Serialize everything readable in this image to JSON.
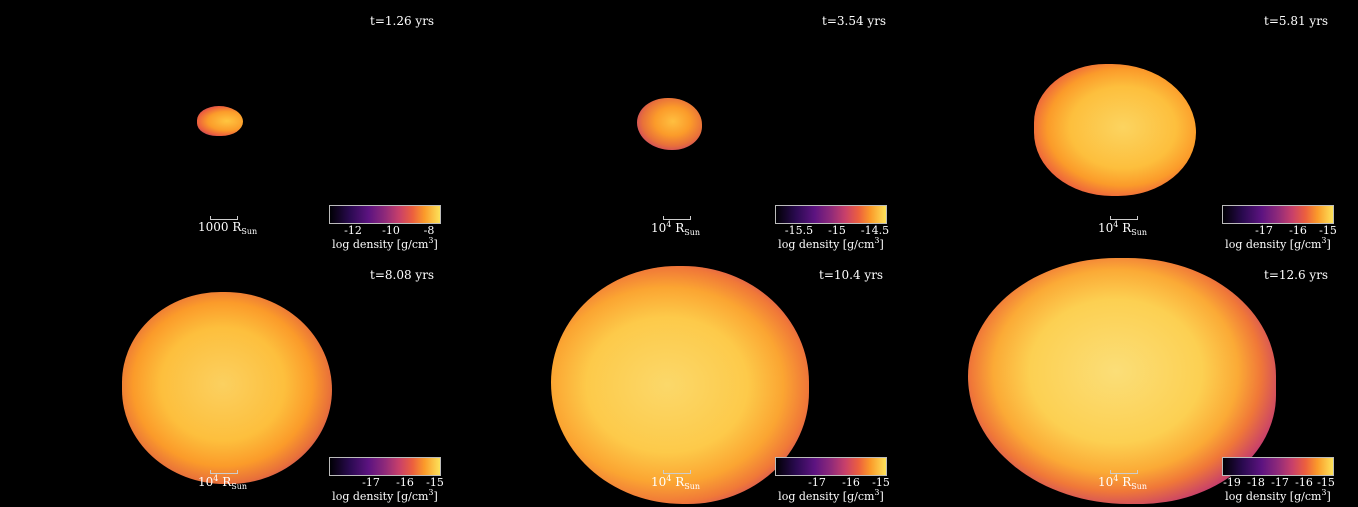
{
  "panels": [
    {
      "time": "t=1.26 yrs",
      "scale_num": "1000",
      "scale_sup": "",
      "scale_unit": "R",
      "scale_sub": "Sun",
      "cbar_ticks": [
        "-12",
        "-10",
        "-8"
      ],
      "cbar_label": "log density [g/cm",
      "cbar_label_sup": "3",
      "cbar_label_end": "]"
    },
    {
      "time": "t=3.54 yrs",
      "scale_num": "10",
      "scale_sup": "4",
      "scale_unit": "R",
      "scale_sub": "Sun",
      "cbar_ticks": [
        "-15.5",
        "-15",
        "-14.5"
      ],
      "cbar_label": "log density [g/cm",
      "cbar_label_sup": "3",
      "cbar_label_end": "]"
    },
    {
      "time": "t=5.81 yrs",
      "scale_num": "10",
      "scale_sup": "4",
      "scale_unit": "R",
      "scale_sub": "Sun",
      "cbar_ticks": [
        "-17",
        "-16",
        "-15"
      ],
      "cbar_label": "log density [g/cm",
      "cbar_label_sup": "3",
      "cbar_label_end": "]"
    },
    {
      "time": "t=8.08 yrs",
      "scale_num": "10",
      "scale_sup": "4",
      "scale_unit": "R",
      "scale_sub": "Sun",
      "cbar_ticks": [
        "-17",
        "-16",
        "-15"
      ],
      "cbar_label": "log density [g/cm",
      "cbar_label_sup": "3",
      "cbar_label_end": "]"
    },
    {
      "time": "t=10.4 yrs",
      "scale_num": "10",
      "scale_sup": "4",
      "scale_unit": "R",
      "scale_sub": "Sun",
      "cbar_ticks": [
        "-17",
        "-16",
        "-15"
      ],
      "cbar_label": "log density [g/cm",
      "cbar_label_sup": "3",
      "cbar_label_end": "]"
    },
    {
      "time": "t=12.6 yrs",
      "scale_num": "10",
      "scale_sup": "4",
      "scale_unit": "R",
      "scale_sub": "Sun",
      "cbar_ticks": [
        "-19",
        "-18",
        "-17",
        "-16",
        "-15"
      ],
      "cbar_label": "log density [g/cm",
      "cbar_label_sup": "3",
      "cbar_label_end": "]"
    }
  ],
  "colors": {
    "background": "#000000",
    "colormap": "inferno"
  }
}
